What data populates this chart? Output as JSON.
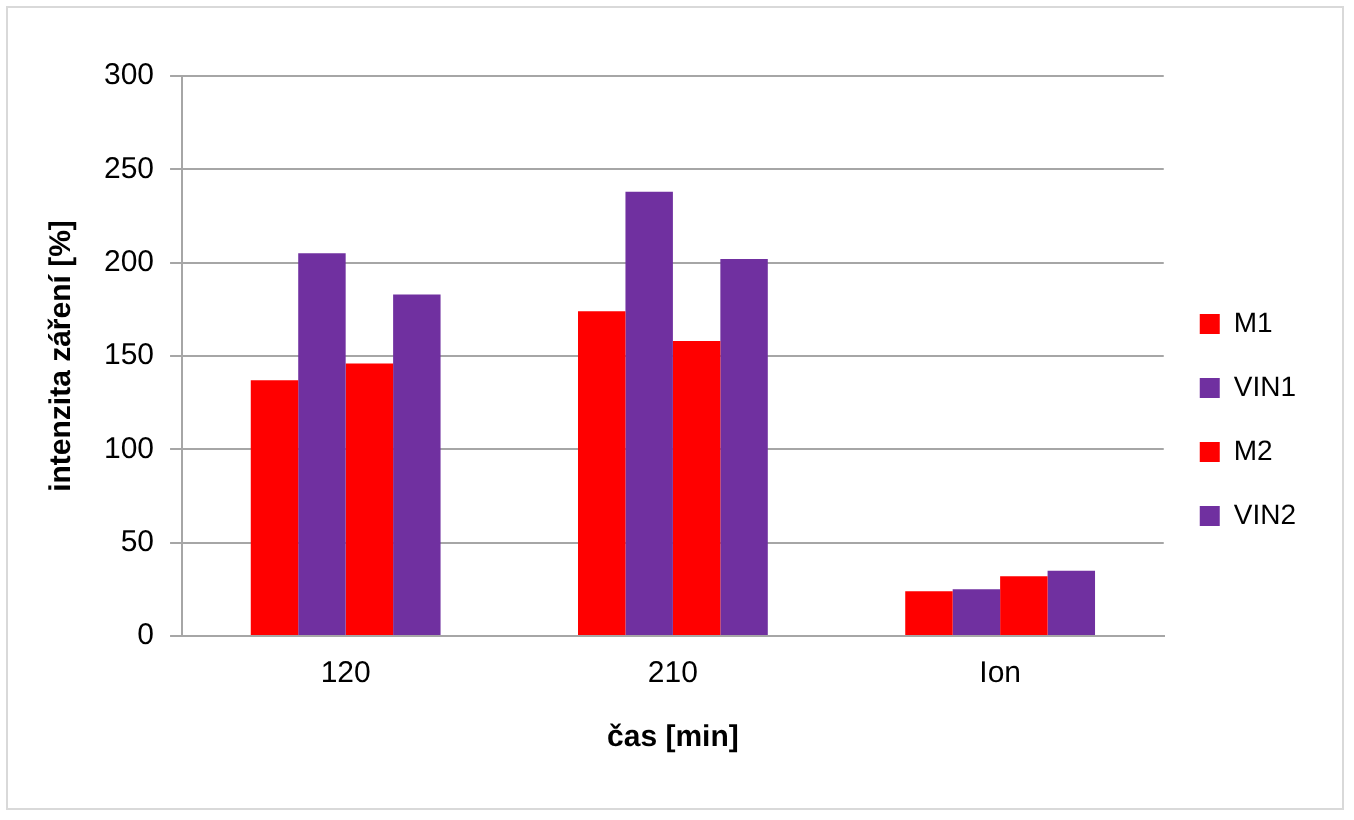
{
  "chart_data": {
    "type": "bar",
    "xlabel": "čas [min]",
    "ylabel": "intenzita záření [%]",
    "categories": [
      "120",
      "210",
      "Ion"
    ],
    "series": [
      {
        "name": "M1",
        "color": "#ff0000",
        "values": [
          137,
          174,
          24
        ]
      },
      {
        "name": "VIN1",
        "color": "#7030a0",
        "values": [
          205,
          238,
          25
        ]
      },
      {
        "name": "M2",
        "color": "#ff0000",
        "values": [
          146,
          158,
          32
        ]
      },
      {
        "name": "VIN2",
        "color": "#7030a0",
        "values": [
          183,
          202,
          35
        ]
      }
    ],
    "ylim": [
      0,
      300
    ],
    "yticks": [
      0,
      50,
      100,
      150,
      200,
      250,
      300
    ],
    "grid": "y",
    "legend": "right"
  }
}
